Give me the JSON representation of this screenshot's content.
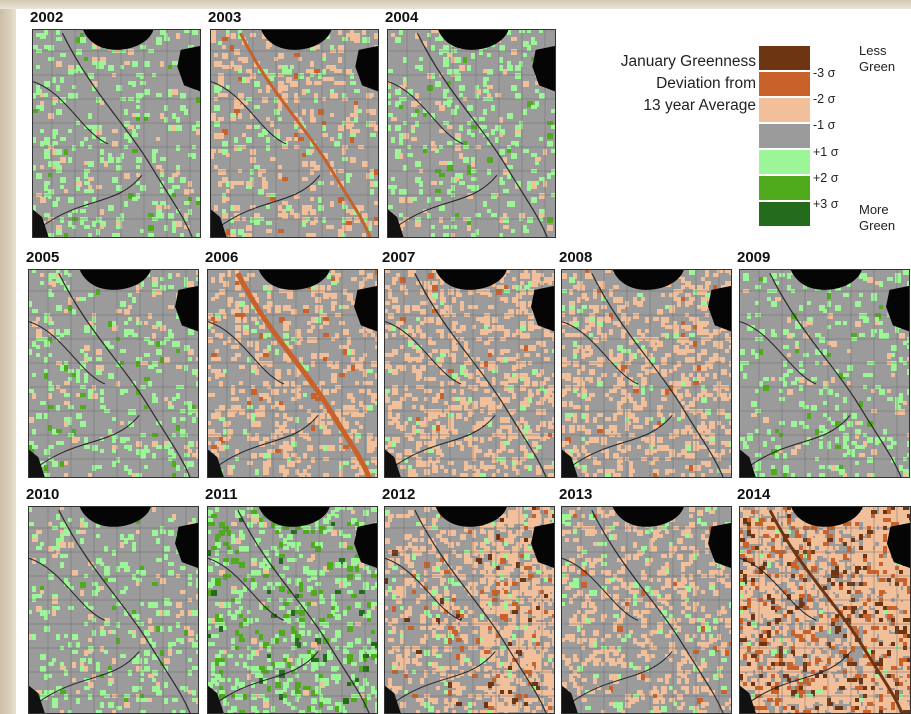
{
  "title_lines": [
    "January Greenness",
    "Deviation from",
    "13 year Average"
  ],
  "legend": {
    "classes": [
      {
        "label": "-3 σ",
        "color": "#6e3512"
      },
      {
        "label": "-2 σ",
        "color": "#c8622a"
      },
      {
        "label": "-1 σ",
        "color": "#f2bf9b"
      },
      {
        "label": "+1 σ",
        "color": "#9b9b9b"
      },
      {
        "label": "+2 σ",
        "color": "#9cf597"
      },
      {
        "label": "+3 σ",
        "color": "#4faa1c"
      },
      {
        "label": "",
        "color": "#246b1c"
      }
    ],
    "top_label": [
      "Less",
      "Green"
    ],
    "bottom_label": [
      "More",
      "Green"
    ]
  },
  "years": [
    "2002",
    "2003",
    "2004",
    "2005",
    "2006",
    "2007",
    "2008",
    "2009",
    "2010",
    "2011",
    "2012",
    "2013",
    "2014"
  ],
  "map_character": {
    "2002": "green",
    "2003": "river-orange",
    "2004": "green",
    "2005": "green",
    "2006": "river-orange-strong",
    "2007": "tan",
    "2008": "tan",
    "2009": "green",
    "2010": "green",
    "2011": "green-strong",
    "2012": "tan-east",
    "2013": "tan-mixed",
    "2014": "brown"
  }
}
